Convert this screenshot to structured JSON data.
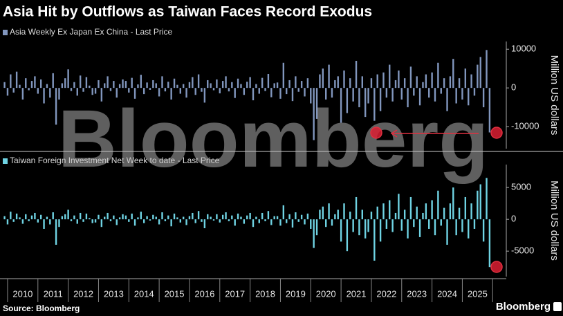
{
  "title": "Asia Hit by Outflows as Taiwan Faces Record Exodus",
  "source": "Source: Bloomberg",
  "watermark": "Bloomberg",
  "brand": "Bloomberg",
  "chart_data": [
    {
      "type": "bar",
      "legend": "Asia Weekly Ex Japan Ex China - Last Price",
      "y_label": "Million US dollars",
      "color": "#8196bd",
      "x": [
        2009.9,
        2010,
        2010.1,
        2010.2,
        2010.3,
        2010.4,
        2010.5,
        2010.6,
        2010.7,
        2010.8,
        2010.9,
        2011,
        2011.1,
        2011.2,
        2011.3,
        2011.4,
        2011.5,
        2011.6,
        2011.7,
        2011.8,
        2011.9,
        2012,
        2012.1,
        2012.2,
        2012.3,
        2012.4,
        2012.5,
        2012.6,
        2012.7,
        2012.8,
        2012.9,
        2013,
        2013.1,
        2013.2,
        2013.3,
        2013.4,
        2013.5,
        2013.6,
        2013.7,
        2013.8,
        2013.9,
        2014,
        2014.1,
        2014.2,
        2014.3,
        2014.4,
        2014.5,
        2014.6,
        2014.7,
        2014.8,
        2014.9,
        2015,
        2015.1,
        2015.2,
        2015.3,
        2015.4,
        2015.5,
        2015.6,
        2015.7,
        2015.8,
        2015.9,
        2016,
        2016.1,
        2016.2,
        2016.3,
        2016.4,
        2016.5,
        2016.6,
        2016.7,
        2016.8,
        2016.9,
        2017,
        2017.1,
        2017.2,
        2017.3,
        2017.4,
        2017.5,
        2017.6,
        2017.7,
        2017.8,
        2017.9,
        2018,
        2018.1,
        2018.2,
        2018.3,
        2018.4,
        2018.5,
        2018.6,
        2018.7,
        2018.8,
        2018.9,
        2019,
        2019.1,
        2019.2,
        2019.3,
        2019.4,
        2019.5,
        2019.6,
        2019.7,
        2019.8,
        2019.9,
        2020,
        2020.1,
        2020.2,
        2020.3,
        2020.4,
        2020.5,
        2020.6,
        2020.7,
        2020.8,
        2020.9,
        2021,
        2021.1,
        2021.2,
        2021.3,
        2021.4,
        2021.5,
        2021.6,
        2021.7,
        2021.8,
        2021.9,
        2022,
        2022.1,
        2022.2,
        2022.3,
        2022.4,
        2022.5,
        2022.6,
        2022.7,
        2022.8,
        2022.9,
        2023,
        2023.1,
        2023.2,
        2023.3,
        2023.4,
        2023.5,
        2023.6,
        2023.7,
        2023.8,
        2023.9,
        2024,
        2024.1,
        2024.2,
        2024.3,
        2024.4,
        2024.5,
        2024.6,
        2024.7,
        2024.8,
        2024.9,
        2025,
        2025.1,
        2025.2,
        2025.3,
        2025.4,
        2025.5,
        2025.6,
        2025.7,
        2025.8,
        2025.9
      ],
      "values": [
        1500,
        -2000,
        3500,
        -1200,
        4200,
        800,
        -3000,
        2500,
        -600,
        1800,
        3000,
        -1500,
        2200,
        -4000,
        1000,
        -2500,
        3800,
        -9500,
        -3000,
        1200,
        2500,
        4800,
        -800,
        1500,
        -2000,
        3200,
        -1000,
        2800,
        600,
        -1800,
        -1500,
        2000,
        -3500,
        1200,
        3000,
        -800,
        1800,
        -2500,
        1000,
        2200,
        1800,
        -1200,
        2600,
        -2800,
        900,
        3400,
        -1600,
        1400,
        -500,
        2000,
        1200,
        -2200,
        3000,
        -900,
        1600,
        -3000,
        2400,
        800,
        -1500,
        1000,
        -2500,
        1500,
        2800,
        -1800,
        3500,
        -1000,
        -3800,
        2000,
        1200,
        -600,
        2200,
        -1400,
        1800,
        3000,
        -900,
        1500,
        -2600,
        2400,
        1000,
        -1800,
        1600,
        2800,
        -3200,
        1000,
        -1500,
        2600,
        -800,
        3600,
        -2400,
        1200,
        1400,
        -2800,
        6500,
        -1600,
        2000,
        -3400,
        3000,
        -1000,
        1800,
        -2200,
        2500,
        -4000,
        -13500,
        -8000,
        3500,
        5000,
        -3000,
        6000,
        -2500,
        2000,
        3000,
        -9000,
        4500,
        -6500,
        2500,
        -3500,
        7000,
        -5000,
        3000,
        -7500,
        -4000,
        2500,
        -8500,
        3500,
        -6000,
        4000,
        -2500,
        6000,
        -3500,
        2000,
        4500,
        -3000,
        2500,
        -5000,
        5500,
        -2000,
        3000,
        -4500,
        1500,
        3500,
        -2500,
        4000,
        -3500,
        6500,
        -1500,
        2500,
        -6000,
        3000,
        7500,
        -4000,
        2500,
        -3000,
        5000,
        -4500,
        3500,
        -2000,
        6000,
        8000,
        -5000,
        9800,
        -11500
      ],
      "xlim": [
        2009.75,
        2026.45
      ],
      "xticks": [
        2010,
        2011,
        2012,
        2013,
        2014,
        2015,
        2016,
        2017,
        2018,
        2019,
        2020,
        2021,
        2022,
        2023,
        2024,
        2025
      ],
      "ylim": [
        -15700,
        12000
      ],
      "yticks": [
        10000,
        0,
        -10000
      ]
    },
    {
      "type": "bar",
      "legend": "Taiwan Foreign Investment Net Week to date - Last Price",
      "y_label": "Million US dollars",
      "color": "#6fd3e3",
      "x": [
        2009.9,
        2010,
        2010.1,
        2010.2,
        2010.3,
        2010.4,
        2010.5,
        2010.6,
        2010.7,
        2010.8,
        2010.9,
        2011,
        2011.1,
        2011.2,
        2011.3,
        2011.4,
        2011.5,
        2011.6,
        2011.7,
        2011.8,
        2011.9,
        2012,
        2012.1,
        2012.2,
        2012.3,
        2012.4,
        2012.5,
        2012.6,
        2012.7,
        2012.8,
        2012.9,
        2013,
        2013.1,
        2013.2,
        2013.3,
        2013.4,
        2013.5,
        2013.6,
        2013.7,
        2013.8,
        2013.9,
        2014,
        2014.1,
        2014.2,
        2014.3,
        2014.4,
        2014.5,
        2014.6,
        2014.7,
        2014.8,
        2014.9,
        2015,
        2015.1,
        2015.2,
        2015.3,
        2015.4,
        2015.5,
        2015.6,
        2015.7,
        2015.8,
        2015.9,
        2016,
        2016.1,
        2016.2,
        2016.3,
        2016.4,
        2016.5,
        2016.6,
        2016.7,
        2016.8,
        2016.9,
        2017,
        2017.1,
        2017.2,
        2017.3,
        2017.4,
        2017.5,
        2017.6,
        2017.7,
        2017.8,
        2017.9,
        2018,
        2018.1,
        2018.2,
        2018.3,
        2018.4,
        2018.5,
        2018.6,
        2018.7,
        2018.8,
        2018.9,
        2019,
        2019.1,
        2019.2,
        2019.3,
        2019.4,
        2019.5,
        2019.6,
        2019.7,
        2019.8,
        2019.9,
        2020,
        2020.1,
        2020.2,
        2020.3,
        2020.4,
        2020.5,
        2020.6,
        2020.7,
        2020.8,
        2020.9,
        2021,
        2021.1,
        2021.2,
        2021.3,
        2021.4,
        2021.5,
        2021.6,
        2021.7,
        2021.8,
        2021.9,
        2022,
        2022.1,
        2022.2,
        2022.3,
        2022.4,
        2022.5,
        2022.6,
        2022.7,
        2022.8,
        2022.9,
        2023,
        2023.1,
        2023.2,
        2023.3,
        2023.4,
        2023.5,
        2023.6,
        2023.7,
        2023.8,
        2023.9,
        2024,
        2024.1,
        2024.2,
        2024.3,
        2024.4,
        2024.5,
        2024.6,
        2024.7,
        2024.8,
        2024.9,
        2025,
        2025.1,
        2025.2,
        2025.3,
        2025.4,
        2025.5,
        2025.6,
        2025.7,
        2025.8,
        2025.9
      ],
      "values": [
        500,
        -800,
        1200,
        -400,
        900,
        300,
        -700,
        800,
        -300,
        600,
        1000,
        -500,
        700,
        -1500,
        400,
        -800,
        1100,
        -4000,
        -1200,
        500,
        800,
        1500,
        -300,
        600,
        -700,
        1000,
        -400,
        900,
        200,
        -600,
        -500,
        700,
        -1200,
        400,
        1000,
        -300,
        600,
        -900,
        300,
        800,
        600,
        -400,
        900,
        -1000,
        300,
        1200,
        -600,
        500,
        -200,
        700,
        400,
        -800,
        1100,
        -300,
        600,
        -1100,
        900,
        300,
        -500,
        400,
        -900,
        500,
        1000,
        -600,
        1300,
        -400,
        -1400,
        800,
        400,
        -200,
        800,
        -500,
        700,
        1100,
        -300,
        600,
        -1000,
        900,
        400,
        -700,
        600,
        1000,
        -1200,
        400,
        -600,
        1000,
        -300,
        1300,
        -900,
        500,
        500,
        -1000,
        2200,
        -600,
        800,
        -1300,
        1100,
        -400,
        700,
        -800,
        900,
        -1500,
        -4500,
        -2500,
        1500,
        2000,
        -1200,
        2500,
        -1000,
        800,
        1500,
        -3500,
        2500,
        -5000,
        1200,
        -2000,
        3500,
        -2500,
        1500,
        -3000,
        -2000,
        1200,
        -6500,
        2000,
        -3500,
        2500,
        -1500,
        3000,
        -2000,
        1000,
        4000,
        -1800,
        1500,
        -3000,
        3500,
        -1200,
        2000,
        -2800,
        1000,
        2500,
        -1500,
        3000,
        -2500,
        4500,
        -1000,
        1800,
        -4000,
        2500,
        5000,
        -2500,
        1800,
        -2000,
        3500,
        -3000,
        2500,
        -1500,
        4500,
        5500,
        -3500,
        6500,
        -7500
      ],
      "xlim": [
        2009.75,
        2026.45
      ],
      "xticks": [
        2010,
        2011,
        2012,
        2013,
        2014,
        2015,
        2016,
        2017,
        2018,
        2019,
        2020,
        2021,
        2022,
        2023,
        2024,
        2025
      ],
      "ylim": [
        -9000,
        8600
      ],
      "yticks": [
        5000,
        0,
        -5000
      ]
    }
  ]
}
